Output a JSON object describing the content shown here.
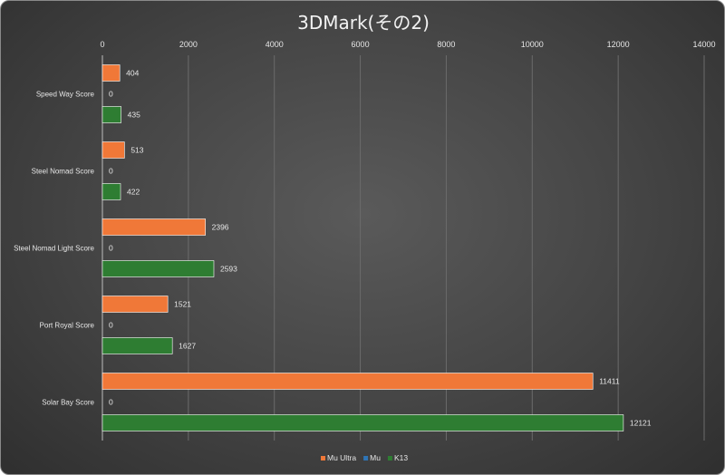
{
  "chart_data": {
    "type": "bar",
    "orientation": "horizontal",
    "title": "3DMark(その2)",
    "xlim": [
      0,
      14000
    ],
    "xticks": [
      0,
      2000,
      4000,
      6000,
      8000,
      10000,
      12000,
      14000
    ],
    "xtick_labels": [
      "0",
      "2000",
      "4000",
      "6000",
      "8000",
      "10000",
      "12000",
      "14000"
    ],
    "x_axis_position": "top",
    "grid": true,
    "legend_position": "bottom",
    "categories": [
      "Speed Way Score",
      "Steel Nomad Score",
      "Steel Nomad Light Score",
      "Port Royal Score",
      "Solar Bay Score"
    ],
    "series": [
      {
        "name": "Mu Ultra",
        "color": "#f07838",
        "values": [
          404,
          513,
          2396,
          1521,
          11411
        ]
      },
      {
        "name": "Mu",
        "color": "#2e75b6",
        "values": [
          0,
          0,
          0,
          0,
          0
        ]
      },
      {
        "name": "K13",
        "color": "#2e7d32",
        "values": [
          435,
          422,
          2593,
          1627,
          12121
        ]
      }
    ]
  }
}
